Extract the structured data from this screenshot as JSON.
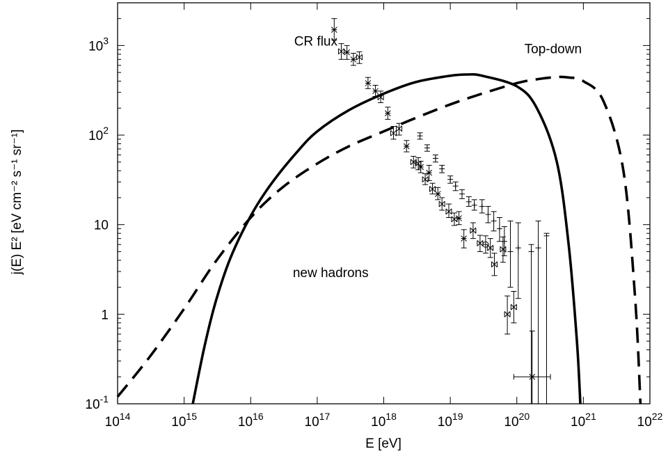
{
  "chart_data": {
    "type": "line",
    "title": "",
    "xlabel": "E [eV]",
    "ylabel": "j(E) E² [eV cm⁻² s⁻¹ sr⁻¹]",
    "x_scale": "log",
    "y_scale": "log",
    "xlim": [
      100000000000000.0,
      1e+22
    ],
    "ylim": [
      0.1,
      3000
    ],
    "grid": false,
    "legend": "none",
    "x_ticks": [
      {
        "value": 100000000000000.0,
        "base": "10",
        "exp": "14"
      },
      {
        "value": 1000000000000000.0,
        "base": "10",
        "exp": "15"
      },
      {
        "value": 1e+16,
        "base": "10",
        "exp": "16"
      },
      {
        "value": 1e+17,
        "base": "10",
        "exp": "17"
      },
      {
        "value": 1e+18,
        "base": "10",
        "exp": "18"
      },
      {
        "value": 1e+19,
        "base": "10",
        "exp": "19"
      },
      {
        "value": 1e+20,
        "base": "10",
        "exp": "20"
      },
      {
        "value": 1e+21,
        "base": "10",
        "exp": "21"
      },
      {
        "value": 1e+22,
        "base": "10",
        "exp": "22"
      }
    ],
    "y_ticks": [
      {
        "value": 0.1,
        "base": "10",
        "exp": "-1"
      },
      {
        "value": 1,
        "base": "1",
        "exp": ""
      },
      {
        "value": 10,
        "base": "10",
        "exp": ""
      },
      {
        "value": 100,
        "base": "10",
        "exp": "2"
      },
      {
        "value": 1000,
        "base": "10",
        "exp": "3"
      }
    ],
    "annotations": [
      {
        "text": "CR flux",
        "x": 4.5e+16,
        "y": 1000
      },
      {
        "text": "Top-down",
        "x": 1.3e+20,
        "y": 820
      },
      {
        "text": "new hadrons",
        "x": 4.3e+16,
        "y": 2.6
      }
    ],
    "series": [
      {
        "style": "solid",
        "x": [
          1350000000000000.0,
          2000000000000000.0,
          3000000000000000.0,
          5000000000000000.0,
          1e+16,
          2e+16,
          5e+16,
          1e+17,
          3e+17,
          1e+18,
          3e+18,
          1e+19,
          1.8e+19,
          3e+19,
          1e+20,
          2e+20,
          4e+20,
          6e+20,
          8e+20,
          9e+20
        ],
        "y": [
          0.1,
          0.42,
          1.4,
          4.3,
          12.5,
          28,
          65,
          110,
          190,
          290,
          390,
          460,
          475,
          460,
          350,
          200,
          50,
          6,
          0.5,
          0.1
        ]
      },
      {
        "style": "dashed",
        "x": [
          100000000000000.0,
          300000000000000.0,
          1000000000000000.0,
          3000000000000000.0,
          1e+16,
          3e+16,
          1e+17,
          3e+17,
          1e+18,
          3e+18,
          1e+19,
          3e+19,
          1e+20,
          2e+20,
          4e+20,
          6e+20,
          1e+21,
          2e+21,
          4e+21,
          6e+21,
          7.2e+21
        ],
        "y": [
          0.12,
          0.33,
          1.15,
          3.9,
          12,
          26,
          48,
          75,
          110,
          155,
          220,
          290,
          380,
          420,
          445,
          440,
          400,
          240,
          40,
          1.5,
          0.1
        ]
      },
      {
        "name": "",
        "style": "points",
        "points": [
          {
            "x": 1.8e+17,
            "y": 1500,
            "lo": 1150,
            "hi": 2000,
            "marker": "star"
          },
          {
            "x": 2.3e+17,
            "y": 860,
            "lo": 700,
            "hi": 1050,
            "marker": "bowtie"
          },
          {
            "x": 2.8e+17,
            "y": 840,
            "lo": 700,
            "hi": 1000,
            "marker": "star"
          },
          {
            "x": 3.5e+17,
            "y": 700,
            "lo": 600,
            "hi": 820,
            "marker": "star"
          },
          {
            "x": 4.3e+17,
            "y": 740,
            "lo": 630,
            "hi": 850,
            "marker": "bowtie"
          },
          {
            "x": 5.8e+17,
            "y": 380,
            "lo": 330,
            "hi": 440,
            "marker": "star"
          },
          {
            "x": 7.5e+17,
            "y": 310,
            "lo": 270,
            "hi": 360,
            "marker": "star"
          },
          {
            "x": 9e+17,
            "y": 265,
            "lo": 230,
            "hi": 310,
            "marker": "bowtie"
          },
          {
            "x": 1.15e+18,
            "y": 175,
            "lo": 150,
            "hi": 205,
            "marker": "star"
          },
          {
            "x": 1.4e+18,
            "y": 105,
            "lo": 90,
            "hi": 125,
            "marker": "bowtie"
          },
          {
            "x": 1.7e+18,
            "y": 118,
            "lo": 100,
            "hi": 135,
            "marker": "bowtie"
          },
          {
            "x": 2.2e+18,
            "y": 75,
            "lo": 65,
            "hi": 87,
            "marker": "star"
          },
          {
            "x": 2.8e+18,
            "y": 50,
            "lo": 43,
            "hi": 58,
            "marker": "bowtie"
          },
          {
            "x": 3.3e+18,
            "y": 48,
            "lo": 41,
            "hi": 56,
            "marker": "bowtie"
          },
          {
            "x": 3.6e+18,
            "y": 44,
            "lo": 38,
            "hi": 51,
            "marker": "star"
          },
          {
            "x": 4.2e+18,
            "y": 32,
            "lo": 28,
            "hi": 37,
            "marker": "bowtie"
          },
          {
            "x": 4.8e+18,
            "y": 38,
            "lo": 31,
            "hi": 46,
            "marker": "star"
          },
          {
            "x": 5.4e+18,
            "y": 25,
            "lo": 22,
            "hi": 29,
            "marker": "bowtie"
          },
          {
            "x": 6.5e+18,
            "y": 22,
            "lo": 19,
            "hi": 26,
            "marker": "star"
          },
          {
            "x": 7.5e+18,
            "y": 17,
            "lo": 14.5,
            "hi": 20,
            "marker": "bowtie"
          },
          {
            "x": 9.5e+18,
            "y": 14,
            "lo": 12,
            "hi": 17,
            "marker": "bowtie"
          },
          {
            "x": 1.15e+19,
            "y": 11.5,
            "lo": 9.8,
            "hi": 13.5,
            "marker": "bowtie"
          },
          {
            "x": 1.35e+19,
            "y": 11.8,
            "lo": 10,
            "hi": 14,
            "marker": "star"
          },
          {
            "x": 1.6e+19,
            "y": 7,
            "lo": 5.5,
            "hi": 8.8,
            "marker": "star"
          },
          {
            "x": 2.2e+19,
            "y": 8.6,
            "lo": 7,
            "hi": 10.5,
            "marker": "bowtie"
          },
          {
            "x": 2.8e+19,
            "y": 6.2,
            "lo": 5,
            "hi": 7.6,
            "marker": "bowtie"
          },
          {
            "x": 3.4e+19,
            "y": 6,
            "lo": 4.8,
            "hi": 7.5,
            "marker": "circle"
          },
          {
            "x": 4e+19,
            "y": 5.5,
            "lo": 4.3,
            "hi": 7,
            "marker": "bowtie"
          },
          {
            "x": 4.6e+19,
            "y": 3.6,
            "lo": 2.7,
            "hi": 4.8,
            "marker": "bowtie"
          },
          {
            "x": 6.2e+19,
            "y": 5.3,
            "lo": 3.8,
            "hi": 7.3,
            "marker": "bowtie"
          },
          {
            "x": 7.2e+19,
            "y": 1,
            "lo": 0.6,
            "hi": 1.6,
            "marker": "bowtie"
          },
          {
            "x": 9e+19,
            "y": 1.2,
            "lo": 0.8,
            "hi": 1.8,
            "marker": "bowtie"
          },
          {
            "x": 1.7e+20,
            "y": 0.2,
            "lo": 0.1,
            "hi": 0.65,
            "marker": "star",
            "xlo": 9e+19,
            "xhi": 3.2e+20
          },
          {
            "x": 3.5e+18,
            "y": 98,
            "lo": 90,
            "hi": 106,
            "marker": "plus"
          },
          {
            "x": 4.5e+18,
            "y": 72,
            "lo": 66,
            "hi": 78,
            "marker": "plus"
          },
          {
            "x": 6e+18,
            "y": 55,
            "lo": 50,
            "hi": 60,
            "marker": "plus"
          },
          {
            "x": 7.5e+18,
            "y": 42,
            "lo": 38,
            "hi": 46,
            "marker": "plus"
          },
          {
            "x": 1e+19,
            "y": 32,
            "lo": 29,
            "hi": 35,
            "marker": "plus"
          },
          {
            "x": 1.2e+19,
            "y": 27,
            "lo": 24,
            "hi": 30,
            "marker": "plus"
          },
          {
            "x": 1.5e+19,
            "y": 22,
            "lo": 19.5,
            "hi": 24.5,
            "marker": "plus"
          },
          {
            "x": 1.9e+19,
            "y": 18,
            "lo": 16,
            "hi": 20.5,
            "marker": "plus"
          },
          {
            "x": 2.3e+19,
            "y": 16.5,
            "lo": 14.5,
            "hi": 19,
            "marker": "plus"
          },
          {
            "x": 3e+19,
            "y": 16,
            "lo": 13.5,
            "hi": 19,
            "marker": "plus"
          },
          {
            "x": 3.7e+19,
            "y": 13,
            "lo": 10.5,
            "hi": 16,
            "marker": "plus"
          },
          {
            "x": 4.5e+19,
            "y": 11,
            "lo": 8.5,
            "hi": 14,
            "marker": "plus"
          },
          {
            "x": 5.5e+19,
            "y": 9,
            "lo": 6.5,
            "hi": 12,
            "marker": "plus"
          },
          {
            "x": 6.5e+19,
            "y": 6.5,
            "lo": 4.5,
            "hi": 9.5,
            "marker": "plus"
          },
          {
            "x": 8e+19,
            "y": 5,
            "lo": 2,
            "hi": 11,
            "marker": "plus"
          },
          {
            "x": 1.05e+20,
            "y": 5.5,
            "lo": 1.5,
            "hi": 10.5,
            "marker": "plus"
          },
          {
            "x": 1.65e+20,
            "y": 5,
            "lo": 0.1,
            "hi": 6,
            "marker": "plus"
          },
          {
            "x": 2.1e+20,
            "y": 5.5,
            "lo": 0.1,
            "hi": 11,
            "marker": "plus"
          },
          {
            "x": 2.8e+20,
            "y": 7.5,
            "lo": 0.1,
            "hi": 8,
            "marker": "plus"
          }
        ]
      }
    ]
  }
}
